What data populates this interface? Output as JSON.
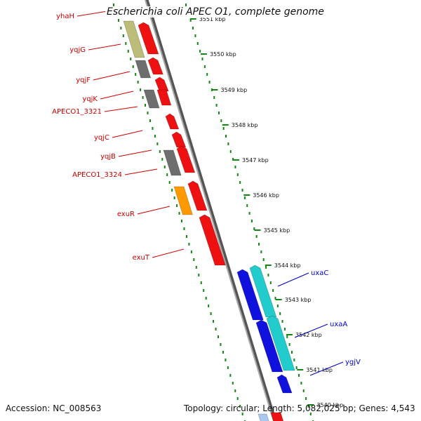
{
  "title": "Escherichia coli APEC O1, complete genome",
  "footer": {
    "accession": "Accession: NC_008563",
    "topology": "Topology: circular; Length: 5,082,025 bp; Genes: 4,543"
  },
  "colors": {
    "background": "#ffffff",
    "backbone": "#888888",
    "tick_green": "#118811",
    "label_red": "#cc0000",
    "label_blue": "#0000cc",
    "gene_red": "#ee1111",
    "gene_gray": "#6e6e6e",
    "gene_olive": "#bdbd7a",
    "gene_orange": "#ff9900",
    "gene_blue": "#1111dd",
    "gene_cyan": "#22cccc"
  },
  "ticks": [
    "3551 kbp",
    "3550 kbp",
    "3549 kbp",
    "3548 kbp",
    "3547 kbp",
    "3546 kbp",
    "3545 kbp",
    "3544 kbp",
    "3543 kbp",
    "3542 kbp",
    "3541 kbp",
    "3540 kbp"
  ],
  "gene_labels_left": [
    "yhaH",
    "yqjG",
    "yqjF",
    "yqjK",
    "APECO1_3321",
    "yqjC",
    "yqjB",
    "APECO1_3324",
    "exuR",
    "exuT"
  ],
  "gene_labels_right": [
    "uxaC",
    "uxaA",
    "ygjV"
  ]
}
